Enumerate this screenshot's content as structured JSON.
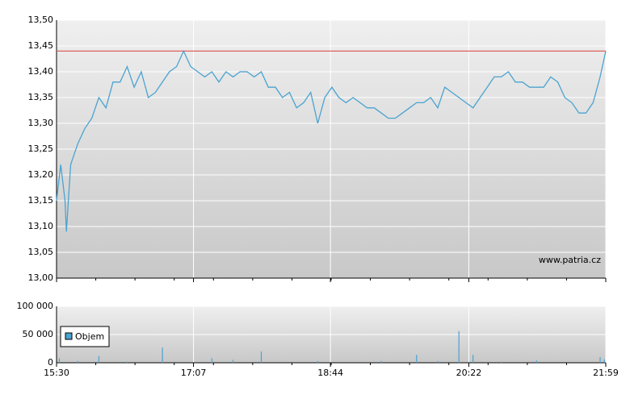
{
  "chart_data": [
    {
      "type": "line",
      "xlim": [
        "15:30",
        "21:59"
      ],
      "xticks": [
        "15:30",
        "17:07",
        "18:44",
        "20:22",
        "21:59"
      ],
      "ylim": [
        13.0,
        13.5
      ],
      "yticks": [
        {
          "value": 13.0,
          "label": "13,00"
        },
        {
          "value": 13.05,
          "label": "13,05"
        },
        {
          "value": 13.1,
          "label": "13,10"
        },
        {
          "value": 13.15,
          "label": "13,15"
        },
        {
          "value": 13.2,
          "label": "13,20"
        },
        {
          "value": 13.25,
          "label": "13,25"
        },
        {
          "value": 13.3,
          "label": "13,30"
        },
        {
          "value": 13.35,
          "label": "13,35"
        },
        {
          "value": 13.4,
          "label": "13,40"
        },
        {
          "value": 13.45,
          "label": "13,45"
        },
        {
          "value": 13.5,
          "label": "13,50"
        }
      ],
      "grid": true,
      "reference_line": {
        "value": 13.44,
        "color": "#e06060"
      },
      "watermark": "www.patria.cz",
      "x": [
        "15:30",
        "15:33",
        "15:36",
        "15:37",
        "15:40",
        "15:45",
        "15:50",
        "15:55",
        "16:00",
        "16:05",
        "16:10",
        "16:15",
        "16:20",
        "16:25",
        "16:30",
        "16:35",
        "16:40",
        "16:45",
        "16:50",
        "16:55",
        "17:00",
        "17:05",
        "17:10",
        "17:15",
        "17:20",
        "17:25",
        "17:30",
        "17:35",
        "17:40",
        "17:45",
        "17:50",
        "17:55",
        "18:00",
        "18:05",
        "18:10",
        "18:15",
        "18:20",
        "18:25",
        "18:30",
        "18:35",
        "18:40",
        "18:45",
        "18:50",
        "18:55",
        "19:00",
        "19:05",
        "19:10",
        "19:15",
        "19:20",
        "19:25",
        "19:30",
        "19:35",
        "19:40",
        "19:45",
        "19:50",
        "19:55",
        "20:00",
        "20:05",
        "20:10",
        "20:15",
        "20:20",
        "20:25",
        "20:30",
        "20:35",
        "20:40",
        "20:45",
        "20:50",
        "20:55",
        "21:00",
        "21:05",
        "21:10",
        "21:15",
        "21:20",
        "21:25",
        "21:30",
        "21:35",
        "21:40",
        "21:45",
        "21:50",
        "21:55",
        "21:59"
      ],
      "series": [
        {
          "color": "#4aa3d0",
          "values": [
            13.15,
            13.22,
            13.15,
            13.09,
            13.22,
            13.26,
            13.29,
            13.31,
            13.35,
            13.33,
            13.38,
            13.38,
            13.41,
            13.37,
            13.4,
            13.35,
            13.36,
            13.38,
            13.4,
            13.41,
            13.44,
            13.41,
            13.4,
            13.39,
            13.4,
            13.38,
            13.4,
            13.39,
            13.4,
            13.4,
            13.39,
            13.4,
            13.37,
            13.37,
            13.35,
            13.36,
            13.33,
            13.34,
            13.36,
            13.3,
            13.35,
            13.37,
            13.35,
            13.34,
            13.35,
            13.34,
            13.33,
            13.33,
            13.32,
            13.31,
            13.31,
            13.32,
            13.33,
            13.34,
            13.34,
            13.35,
            13.33,
            13.37,
            13.36,
            13.35,
            13.34,
            13.33,
            13.35,
            13.37,
            13.39,
            13.39,
            13.4,
            13.38,
            13.38,
            13.37,
            13.37,
            13.37,
            13.39,
            13.38,
            13.35,
            13.34,
            13.32,
            13.32,
            13.34,
            13.39,
            13.44
          ]
        }
      ]
    },
    {
      "type": "bar",
      "xlim": [
        "15:30",
        "21:59"
      ],
      "xticks": [
        "15:30",
        "17:07",
        "18:44",
        "20:22",
        "21:59"
      ],
      "ylim": [
        0,
        100000
      ],
      "yticks": [
        0,
        {
          "value": 50000,
          "label": "50 000"
        },
        {
          "value": 100000,
          "label": "100 000"
        }
      ],
      "grid": true,
      "legend": "top-left",
      "x": [
        "15:32",
        "15:45",
        "16:00",
        "16:20",
        "16:45",
        "17:20",
        "17:35",
        "17:55",
        "18:35",
        "19:20",
        "19:45",
        "20:00",
        "20:15",
        "20:25",
        "20:45",
        "21:10",
        "21:55",
        "21:58"
      ],
      "series": [
        {
          "name": "Objem",
          "color": "#4aa3d0",
          "values": [
            8000,
            3000,
            12000,
            2000,
            27000,
            8000,
            5000,
            20000,
            3000,
            3000,
            14000,
            3000,
            56000,
            14000,
            2000,
            4000,
            10000,
            6000
          ]
        }
      ]
    }
  ]
}
